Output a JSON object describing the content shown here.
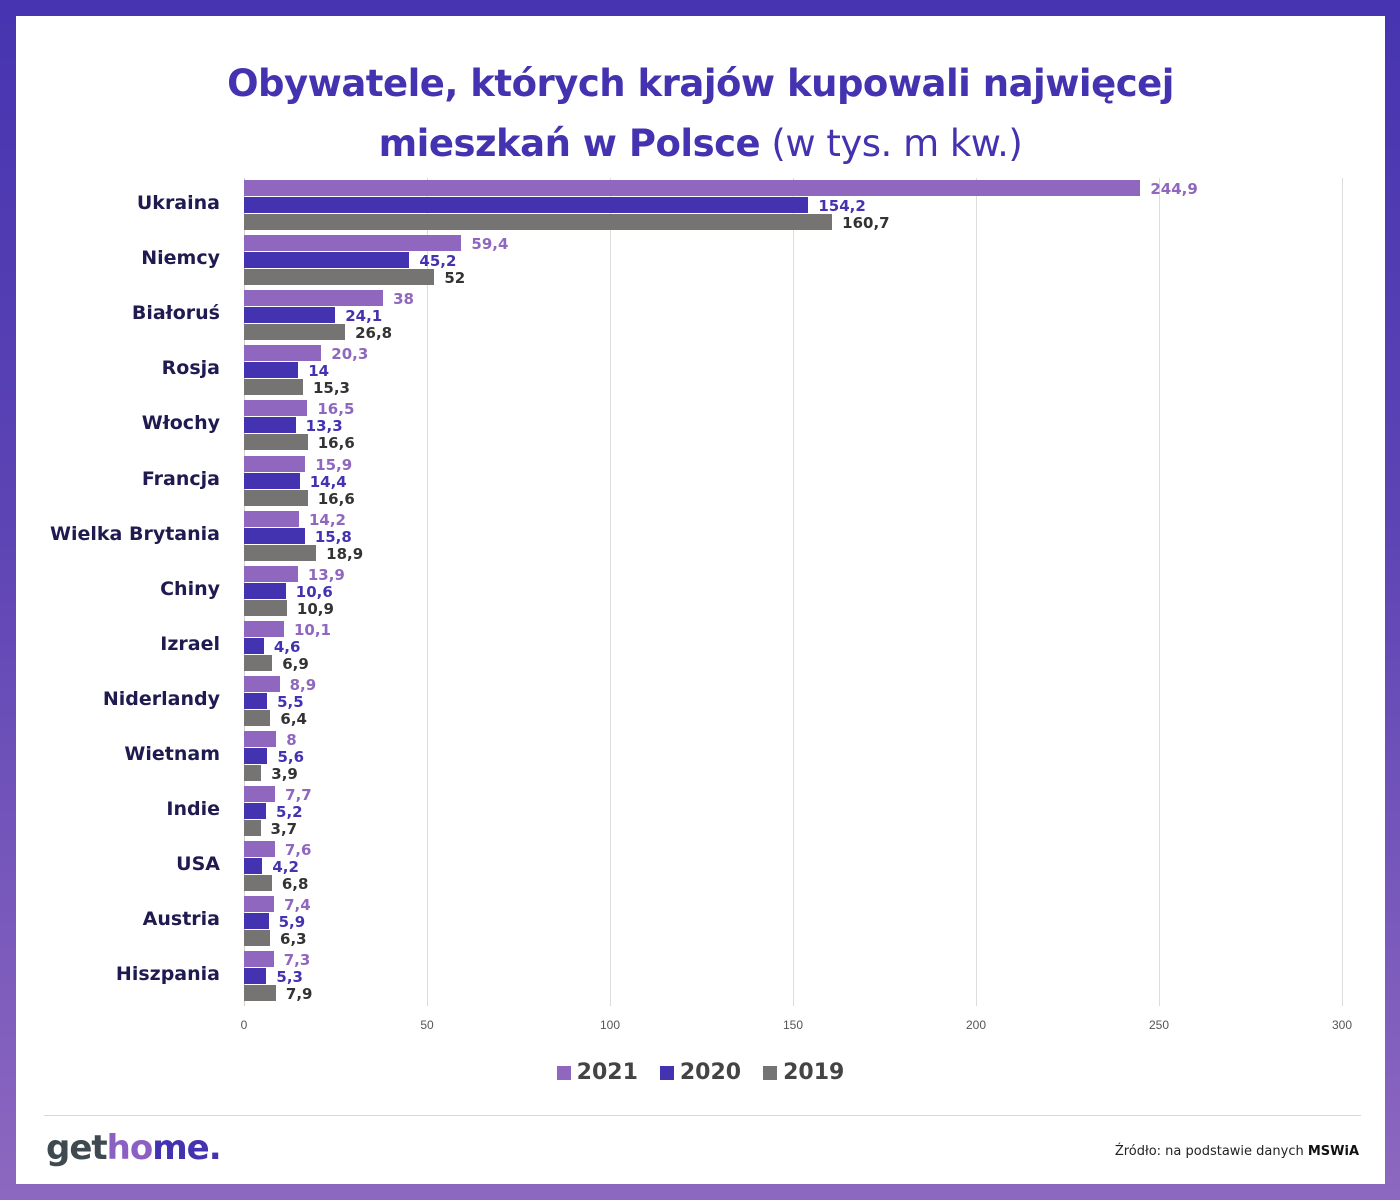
{
  "title": {
    "line1": "Obywatele, których krajów kupowali najwięcej",
    "line2_bold": "mieszkań w Polsce",
    "line2_light": " (w tys. m kw.)"
  },
  "legend": [
    {
      "label": "2021",
      "color": "#8f67bf"
    },
    {
      "label": "2020",
      "color": "#4433b1"
    },
    {
      "label": "2019",
      "color": "#767373"
    }
  ],
  "footer": {
    "logo_part1": "get",
    "logo_part2": "ho",
    "logo_part3": "me.",
    "source_prefix": "Źródło: na podstawie danych ",
    "source_bold": "MSWiA"
  },
  "chart_data": {
    "type": "bar",
    "orientation": "horizontal",
    "title": "Obywatele, których krajów kupowali najwięcej mieszkań w Polsce (w tys. m kw.)",
    "xlabel": "",
    "ylabel": "",
    "xlim": [
      0,
      300
    ],
    "xticks": [
      0,
      50,
      100,
      150,
      200,
      250,
      300
    ],
    "grid": true,
    "legend_position": "bottom",
    "categories": [
      "Ukraina",
      "Niemcy",
      "Białoruś",
      "Rosja",
      "Włochy",
      "Francja",
      "Wielka Brytania",
      "Chiny",
      "Izrael",
      "Niderlandy",
      "Wietnam",
      "Indie",
      "USA",
      "Austria",
      "Hiszpania"
    ],
    "series": [
      {
        "name": "2021",
        "color": "#8f67bf",
        "values": [
          244.9,
          59.4,
          38,
          20.3,
          16.5,
          15.9,
          14.2,
          13.9,
          10.1,
          8.9,
          8,
          7.7,
          7.6,
          7.4,
          7.3
        ],
        "labels": [
          "244,9",
          "59,4",
          "38",
          "20,3",
          "16,5",
          "15,9",
          "14,2",
          "13,9",
          "10,1",
          "8,9",
          "8",
          "7,7",
          "7,6",
          "7,4",
          "7,3"
        ]
      },
      {
        "name": "2020",
        "color": "#4433b1",
        "values": [
          154.2,
          45.2,
          24.1,
          14,
          13.3,
          14.4,
          15.8,
          10.6,
          4.6,
          5.5,
          5.6,
          5.2,
          4.2,
          5.9,
          5.3
        ],
        "labels": [
          "154,2",
          "45,2",
          "24,1",
          "14",
          "13,3",
          "14,4",
          "15,8",
          "10,6",
          "4,6",
          "5,5",
          "5,6",
          "5,2",
          "4,2",
          "5,9",
          "5,3"
        ]
      },
      {
        "name": "2019",
        "color": "#767373",
        "values": [
          160.7,
          52,
          26.8,
          15.3,
          16.6,
          16.6,
          18.9,
          10.9,
          6.9,
          6.4,
          3.9,
          3.7,
          6.8,
          6.3,
          7.9
        ],
        "labels": [
          "160,7",
          "52",
          "26,8",
          "15,3",
          "16,6",
          "16,6",
          "18,9",
          "10,9",
          "6,9",
          "6,4",
          "3,9",
          "3,7",
          "6,8",
          "6,3",
          "7,9"
        ]
      }
    ]
  }
}
